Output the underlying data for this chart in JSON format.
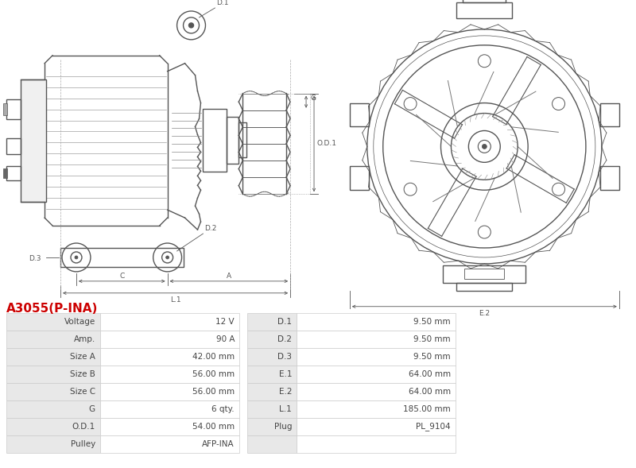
{
  "title": "A3055(P-INA)",
  "title_color": "#cc0000",
  "bg_color": "#ffffff",
  "table_row_bg1": "#ffffff",
  "table_row_bg2": "#e8e8e8",
  "table_border_color": "#cccccc",
  "left_col_labels": [
    "Voltage",
    "Amp.",
    "Size A",
    "Size B",
    "Size C",
    "G",
    "O.D.1",
    "Pulley"
  ],
  "left_col_values": [
    "12 V",
    "90 A",
    "42.00 mm",
    "56.00 mm",
    "56.00 mm",
    "6 qty.",
    "54.00 mm",
    "AFP-INA"
  ],
  "right_col_labels": [
    "D.1",
    "D.2",
    "D.3",
    "E.1",
    "E.2",
    "L.1",
    "Plug",
    ""
  ],
  "right_col_values": [
    "9.50 mm",
    "9.50 mm",
    "9.50 mm",
    "64.00 mm",
    "64.00 mm",
    "185.00 mm",
    "PL_9104",
    ""
  ],
  "line_color": "#555555",
  "font_size_title": 11,
  "font_size_table": 7.5,
  "font_size_dim": 6.5
}
